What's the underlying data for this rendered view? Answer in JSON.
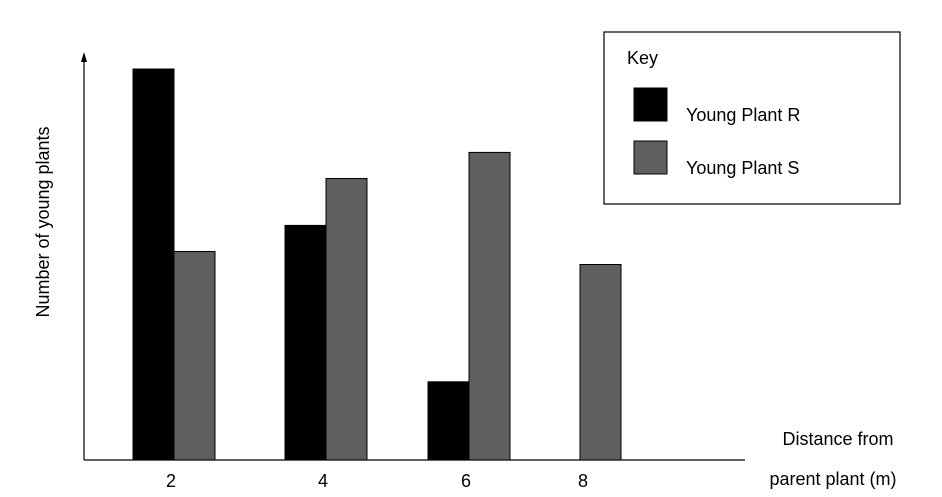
{
  "chart_data": {
    "type": "bar",
    "title": "",
    "ylabel": "Number of young plants",
    "xlabel_line1": "Distance from",
    "xlabel_line2": "parent plant (m)",
    "categories": [
      "2",
      "4",
      "6",
      "8"
    ],
    "series": [
      {
        "name": "Young Plant R",
        "color": "#000000",
        "values": [
          15,
          9,
          3,
          0
        ]
      },
      {
        "name": "Young Plant S",
        "color": "#5f5f5f",
        "values": [
          8,
          10.8,
          11.8,
          7.5
        ]
      }
    ],
    "ylim": [
      0,
      16
    ],
    "y_ticks_shown": false,
    "grid": false,
    "legend": {
      "title": "Key",
      "placement": "top-right"
    }
  }
}
